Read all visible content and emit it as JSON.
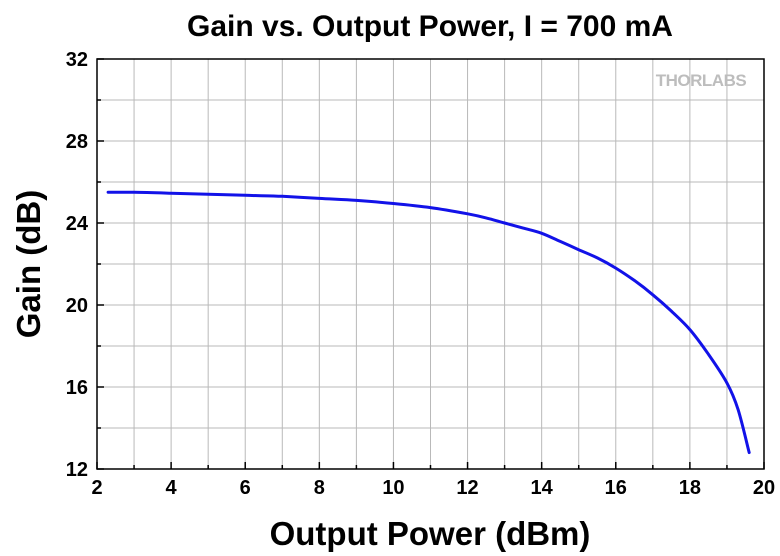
{
  "chart_data": {
    "type": "line",
    "title": "Gain vs. Output Power, I = 700 mA",
    "xlabel": "Output Power (dBm)",
    "ylabel": "Gain (dB)",
    "xlim": [
      2,
      20
    ],
    "ylim": [
      12,
      32
    ],
    "xticks": [
      2,
      4,
      6,
      8,
      10,
      12,
      14,
      16,
      18,
      20
    ],
    "yticks": [
      12,
      16,
      20,
      24,
      28,
      32
    ],
    "grid": true,
    "watermark": "THORLABS",
    "series": [
      {
        "color": "#1212e8",
        "x": [
          2.3,
          3,
          4,
          5,
          6,
          7,
          8,
          9,
          10,
          11,
          12,
          12.5,
          13,
          13.5,
          14,
          14.5,
          15,
          15.5,
          16,
          16.5,
          17,
          17.5,
          18,
          18.5,
          19,
          19.3,
          19.6
        ],
        "y": [
          25.5,
          25.5,
          25.45,
          25.4,
          25.35,
          25.3,
          25.2,
          25.1,
          24.95,
          24.75,
          24.45,
          24.25,
          24.0,
          23.75,
          23.5,
          23.1,
          22.7,
          22.3,
          21.8,
          21.2,
          20.5,
          19.7,
          18.8,
          17.6,
          16.2,
          14.9,
          12.8
        ]
      }
    ]
  }
}
